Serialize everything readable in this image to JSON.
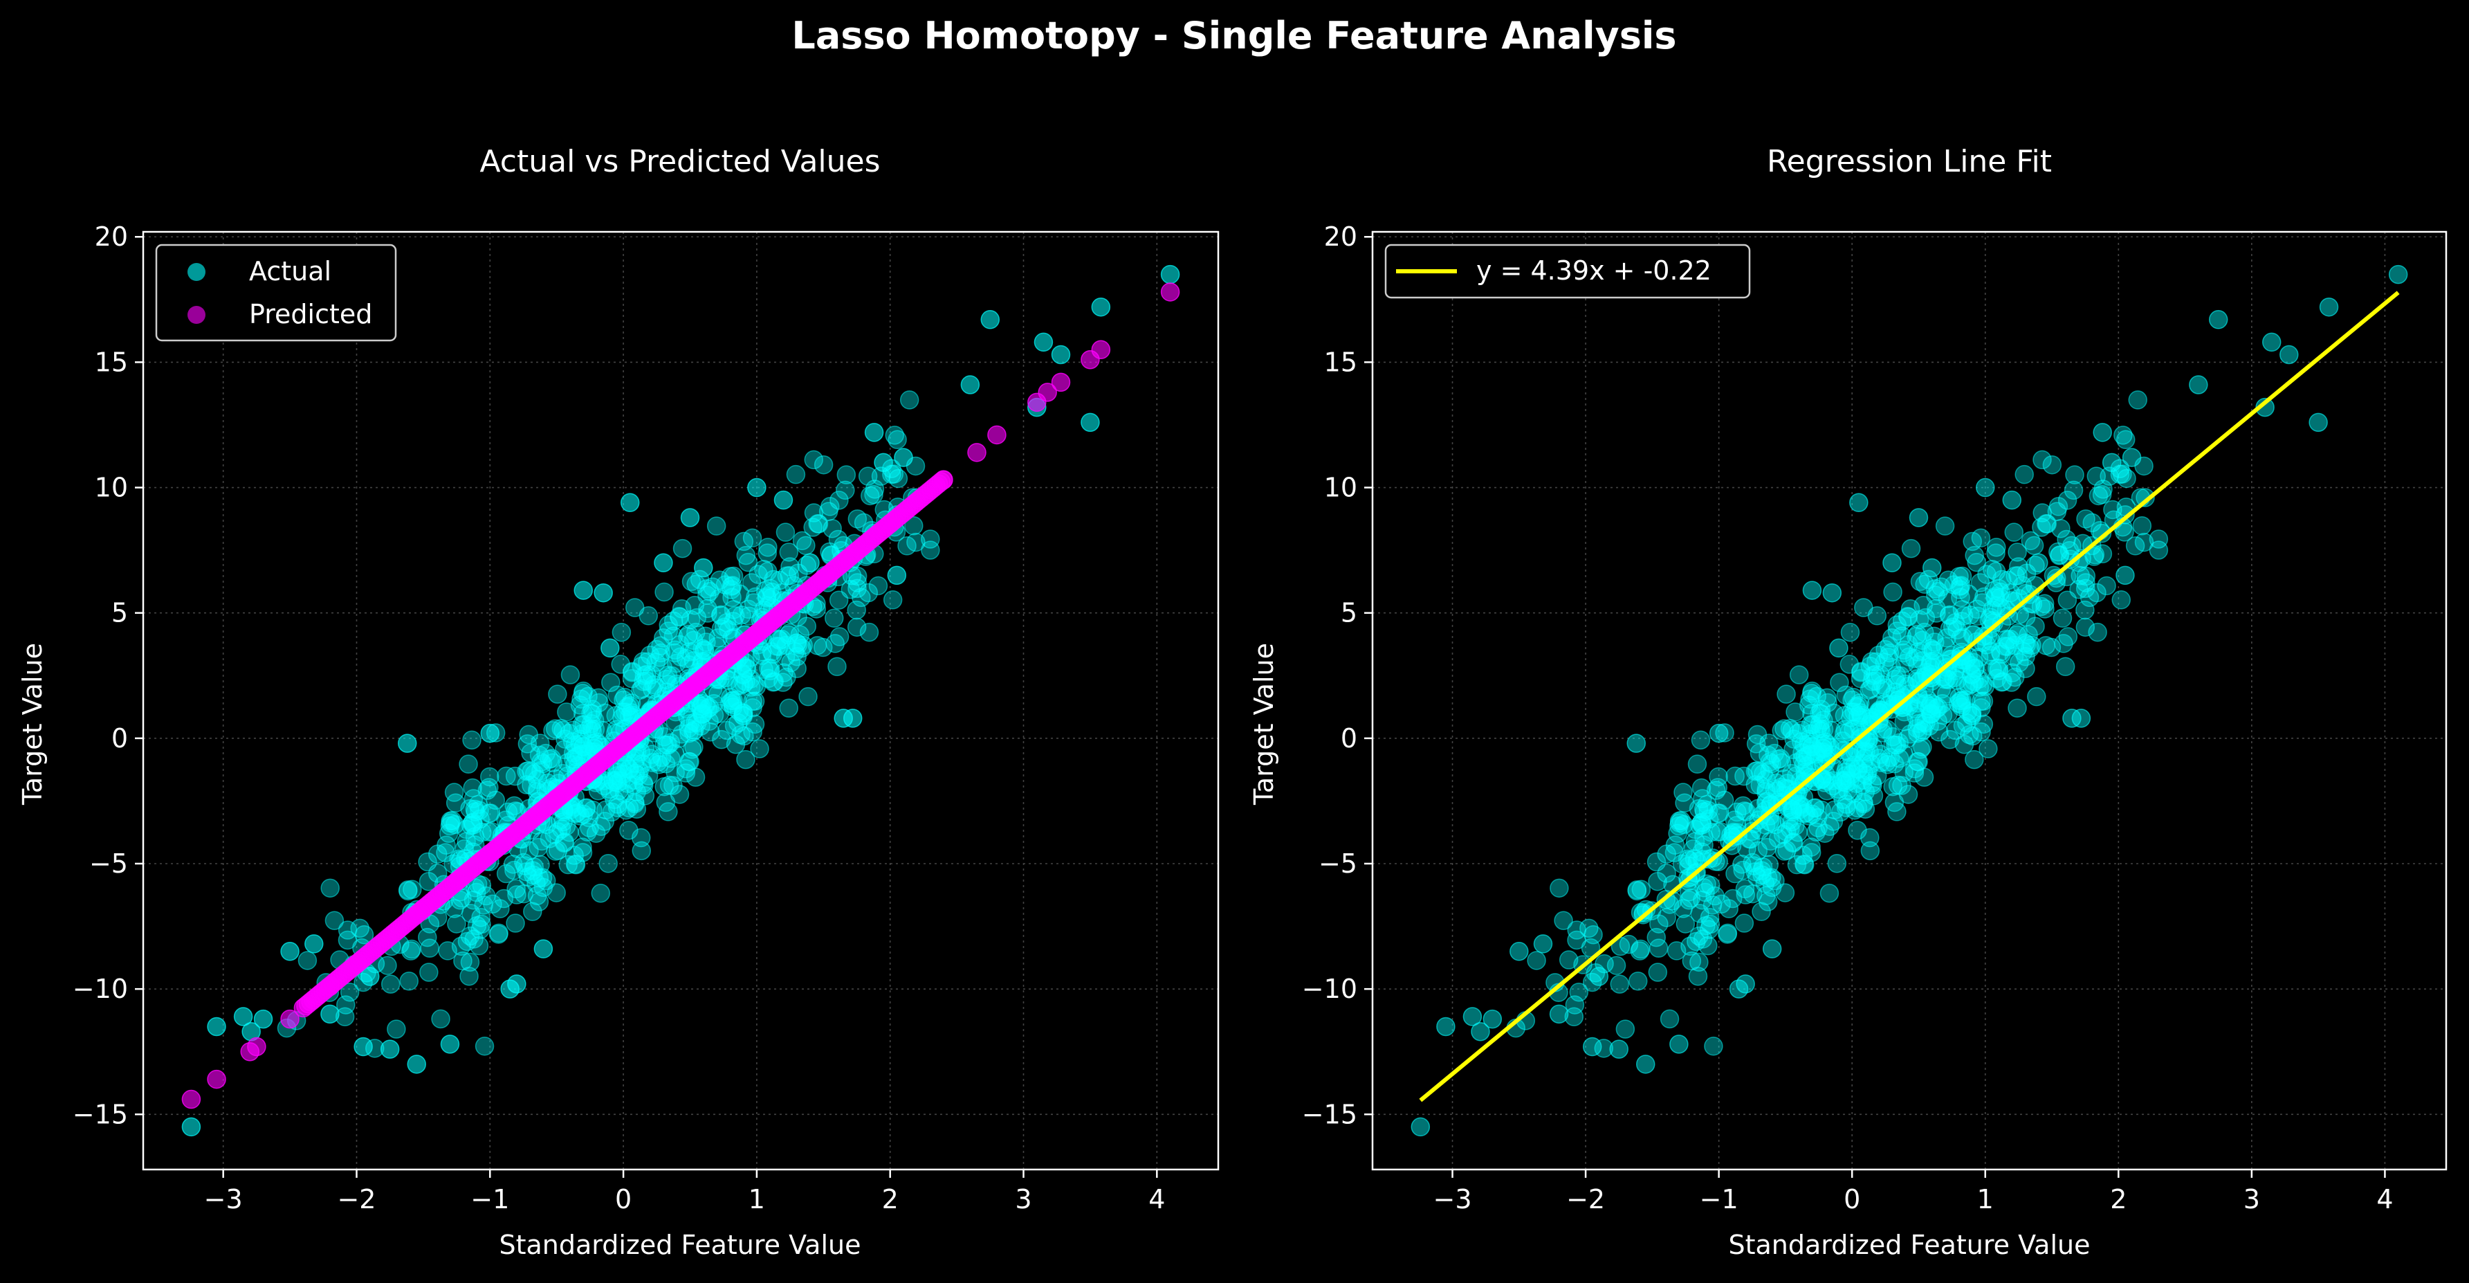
{
  "figure": {
    "suptitle": "Lasso Homotopy - Single Feature Analysis",
    "background": "#000000"
  },
  "colors": {
    "actual": "#00ffff",
    "predicted": "#ff00ff",
    "fit_line": "#ffff00",
    "axes_edge": "#ffffff",
    "grid": "#444444"
  },
  "chart_data": [
    {
      "type": "scatter",
      "title": "Actual vs Predicted Values",
      "xlabel": "Standardized Feature Value",
      "ylabel": "Target Value",
      "xlim": [
        -3.6,
        4.46
      ],
      "ylim": [
        -17.2,
        20.2
      ],
      "xticks": [
        -3,
        -2,
        -1,
        0,
        1,
        2,
        3,
        4
      ],
      "yticks": [
        -15,
        -10,
        -5,
        0,
        5,
        10,
        15,
        20
      ],
      "grid": true,
      "legend_position": "upper-left",
      "series": [
        {
          "name": "Actual",
          "color": "#00ffff",
          "x": [
            -3.24,
            -3.05,
            -2.85,
            -2.79,
            -2.5,
            -2.32,
            -2.2,
            -1.95,
            -1.9,
            -1.55,
            -1.3,
            -0.85,
            -0.8,
            -0.6,
            0.05,
            0.5,
            1.0,
            1.4,
            1.65,
            1.72,
            2.6,
            2.75,
            3.1,
            3.15,
            3.28,
            3.5,
            3.58,
            4.1,
            -1.62,
            -0.3,
            -0.15,
            -0.1,
            0.3,
            0.6,
            1.2,
            1.3,
            2.05,
            2.1,
            1.95,
            1.88,
            -1.0,
            -0.5,
            0.9,
            -2.7,
            -1.75
          ],
          "y": [
            -15.5,
            -11.5,
            -11.1,
            -11.7,
            -8.5,
            -8.2,
            -11.0,
            -12.3,
            -9.5,
            -13.0,
            -12.2,
            -10.0,
            -9.8,
            -8.4,
            9.4,
            8.8,
            10.0,
            7.0,
            0.8,
            0.8,
            14.1,
            16.7,
            13.2,
            15.8,
            15.3,
            12.6,
            17.2,
            18.5,
            -0.2,
            5.9,
            5.8,
            3.6,
            7.0,
            6.8,
            9.5,
            3.8,
            6.5,
            11.2,
            11.0,
            12.2,
            0.2,
            -2.0,
            1.0,
            -11.2,
            -12.4
          ]
        },
        {
          "name": "Predicted",
          "color": "#ff00ff",
          "x": [
            -3.24,
            -3.05,
            -2.8,
            -2.75,
            -2.5,
            -2.2,
            -2.0,
            -1.5,
            -1.0,
            -0.5,
            0.0,
            0.5,
            1.0,
            1.5,
            2.0,
            2.4,
            2.65,
            2.8,
            3.1,
            3.18,
            3.28,
            3.5,
            3.58,
            4.1
          ],
          "y": [
            -14.4,
            -13.6,
            -12.5,
            -12.3,
            -11.2,
            -9.9,
            -9.0,
            -6.8,
            -4.6,
            -2.4,
            -0.22,
            1.98,
            4.17,
            6.37,
            8.56,
            10.3,
            11.4,
            12.1,
            13.4,
            13.8,
            14.2,
            15.1,
            15.5,
            17.8
          ]
        }
      ]
    },
    {
      "type": "scatter",
      "title": "Regression Line Fit",
      "xlabel": "Standardized Feature Value",
      "ylabel": "Target Value",
      "xlim": [
        -3.6,
        4.46
      ],
      "ylim": [
        -17.2,
        20.2
      ],
      "xticks": [
        -3,
        -2,
        -1,
        0,
        1,
        2,
        3,
        4
      ],
      "yticks": [
        -15,
        -10,
        -5,
        0,
        5,
        10,
        15,
        20
      ],
      "grid": true,
      "legend_position": "upper-left",
      "series": [
        {
          "name": "y = 4.39x + -0.22",
          "type": "line",
          "color": "#ffff00",
          "x": [
            -3.24,
            4.1
          ],
          "y": [
            -14.44,
            17.78
          ]
        }
      ],
      "scatter_color": "#00ffff"
    }
  ]
}
